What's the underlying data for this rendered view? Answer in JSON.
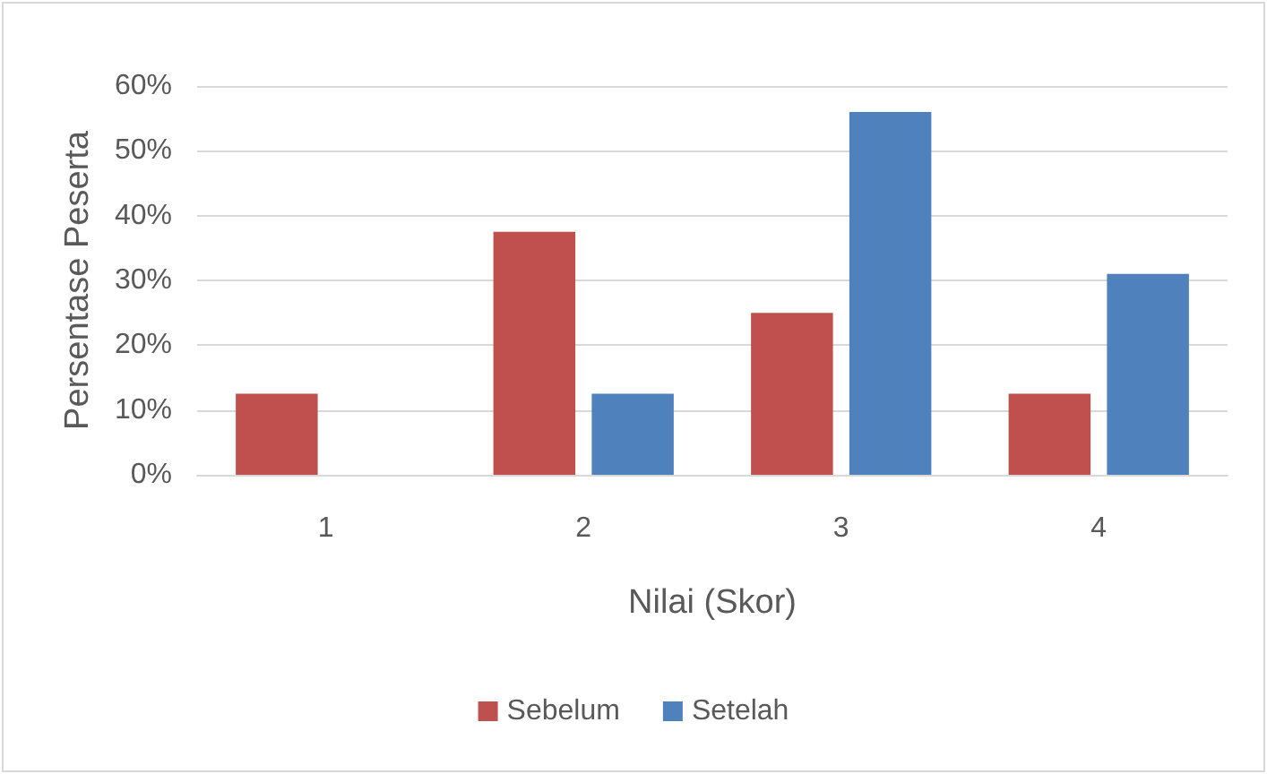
{
  "chart_data": {
    "type": "bar",
    "xlabel": "Nilai (Skor)",
    "ylabel": "Persentase Peserta",
    "categories": [
      "1",
      "2",
      "3",
      "4"
    ],
    "series": [
      {
        "name": "Sebelum",
        "color": "#c0504d",
        "values": [
          12.5,
          37.5,
          25,
          12.5
        ]
      },
      {
        "name": "Setelah",
        "color": "#4f81bd",
        "values": [
          0,
          12.5,
          56,
          31
        ]
      }
    ],
    "ylim": [
      0,
      60
    ],
    "yticks": [
      {
        "value": 0,
        "label": "0%"
      },
      {
        "value": 10,
        "label": "10%"
      },
      {
        "value": 20,
        "label": "20%"
      },
      {
        "value": 30,
        "label": "30%"
      },
      {
        "value": 40,
        "label": "40%"
      },
      {
        "value": 50,
        "label": "50%"
      },
      {
        "value": 60,
        "label": "60%"
      }
    ],
    "grid": "y",
    "legend": "bottom"
  }
}
